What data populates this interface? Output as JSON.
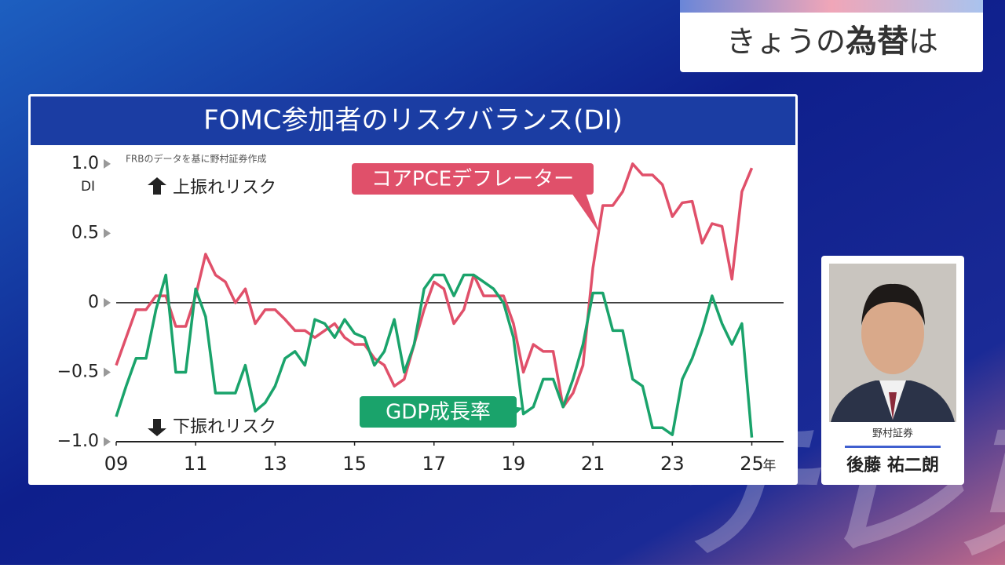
{
  "header": {
    "prefix": "きょうの",
    "highlight": "為替",
    "suffix": "は"
  },
  "watermark": "テレ東",
  "guest": {
    "company": "野村証券",
    "name": "後藤 祐二朗"
  },
  "chart_data": {
    "type": "line",
    "title": "FOMC参加者のリスクバランス(DI)",
    "source": "FRBのデータを基に野村証券作成",
    "y_unit": "DI",
    "x_unit": "年",
    "upper_note": "上振れリスク",
    "lower_note": "下振れリスク",
    "xlim": [
      2009,
      2025.8
    ],
    "xticks": [
      {
        "value": 2009,
        "label": "09"
      },
      {
        "value": 2011,
        "label": "11"
      },
      {
        "value": 2013,
        "label": "13"
      },
      {
        "value": 2015,
        "label": "15"
      },
      {
        "value": 2017,
        "label": "17"
      },
      {
        "value": 2019,
        "label": "19"
      },
      {
        "value": 2021,
        "label": "21"
      },
      {
        "value": 2023,
        "label": "23"
      },
      {
        "value": 2025,
        "label": "25"
      }
    ],
    "ylim": [
      -1,
      1.05
    ],
    "yticks": [
      {
        "value": 1,
        "label": "1.0"
      },
      0.5,
      0,
      {
        "value": -0.5,
        "label": "−0.5"
      },
      {
        "value": -1,
        "label": "−1.0"
      }
    ],
    "x": [
      2009,
      2009.25,
      2009.5,
      2009.75,
      2010,
      2010.25,
      2010.5,
      2010.75,
      2011,
      2011.25,
      2011.5,
      2011.75,
      2012,
      2012.25,
      2012.5,
      2012.75,
      2013,
      2013.25,
      2013.5,
      2013.75,
      2014,
      2014.25,
      2014.5,
      2014.75,
      2015,
      2015.25,
      2015.5,
      2015.75,
      2016,
      2016.25,
      2016.5,
      2016.75,
      2017,
      2017.25,
      2017.5,
      2017.75,
      2018,
      2018.25,
      2018.5,
      2018.75,
      2019,
      2019.25,
      2019.5,
      2019.75,
      2020,
      2020.25,
      2020.5,
      2020.75,
      2021,
      2021.25,
      2021.5,
      2021.75,
      2022,
      2022.25,
      2022.5,
      2022.75,
      2023,
      2023.25,
      2023.5,
      2023.75,
      2024,
      2024.25,
      2024.5,
      2024.75,
      2025
    ],
    "series": [
      {
        "name": "コアPCEデフレーター",
        "color": "#e0506a",
        "values": [
          -0.45,
          -0.25,
          -0.05,
          -0.05,
          0.05,
          0.05,
          -0.17,
          -0.17,
          0.05,
          0.35,
          0.2,
          0.15,
          0,
          0.1,
          -0.15,
          -0.05,
          -0.05,
          -0.12,
          -0.2,
          -0.2,
          -0.25,
          -0.2,
          -0.15,
          -0.25,
          -0.3,
          -0.3,
          -0.4,
          -0.45,
          -0.6,
          -0.55,
          -0.3,
          -0.05,
          0.15,
          0.1,
          -0.15,
          -0.05,
          0.2,
          0.05,
          0.05,
          0.05,
          -0.15,
          -0.5,
          -0.3,
          -0.35,
          -0.35,
          -0.75,
          -0.65,
          -0.45,
          0.25,
          0.7,
          0.7,
          0.8,
          1.0,
          0.92,
          0.92,
          0.85,
          0.62,
          0.72,
          0.73,
          0.43,
          0.57,
          0.55,
          0.17,
          0.8,
          0.97
        ]
      },
      {
        "name": "GDP成長率",
        "color": "#1aa36b",
        "values": [
          -0.82,
          -0.6,
          -0.4,
          -0.4,
          -0.05,
          0.2,
          -0.5,
          -0.5,
          0.1,
          -0.1,
          -0.65,
          -0.65,
          -0.65,
          -0.45,
          -0.78,
          -0.72,
          -0.6,
          -0.4,
          -0.35,
          -0.45,
          -0.12,
          -0.15,
          -0.25,
          -0.12,
          -0.22,
          -0.25,
          -0.45,
          -0.35,
          -0.12,
          -0.5,
          -0.3,
          0.1,
          0.2,
          0.2,
          0.05,
          0.2,
          0.2,
          0.15,
          0.1,
          0,
          -0.25,
          -0.8,
          -0.75,
          -0.55,
          -0.55,
          -0.75,
          -0.55,
          -0.3,
          0.07,
          0.07,
          -0.2,
          -0.2,
          -0.55,
          -0.6,
          -0.9,
          -0.9,
          -0.95,
          -0.55,
          -0.4,
          -0.2,
          0.05,
          -0.15,
          -0.3,
          -0.15,
          -0.97
        ]
      }
    ]
  }
}
